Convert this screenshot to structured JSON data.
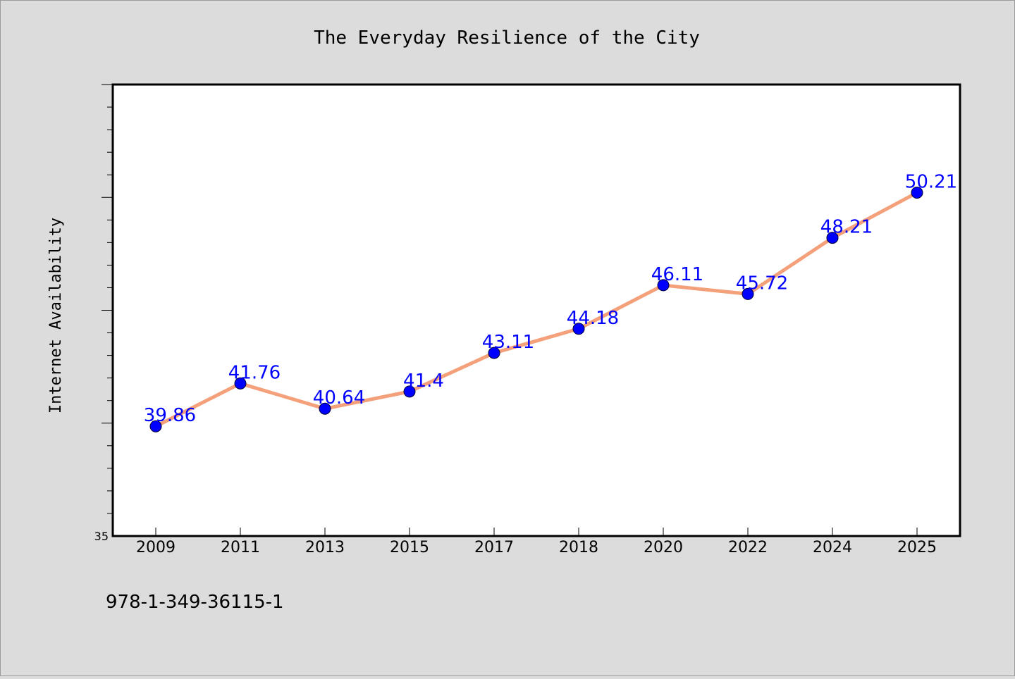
{
  "chart_data": {
    "type": "line",
    "title": "The Everyday Resilience of the City",
    "xlabel": "",
    "ylabel": "Internet Availability",
    "categories": [
      "2009",
      "2011",
      "2013",
      "2015",
      "2017",
      "2018",
      "2020",
      "2022",
      "2024",
      "2025"
    ],
    "series": [
      {
        "values": [
          39.86,
          41.76,
          40.64,
          41.4,
          43.11,
          44.18,
          46.11,
          45.72,
          48.21,
          50.21
        ],
        "data_labels": [
          "39.86",
          "41.76",
          "40.64",
          "41.4",
          "43.11",
          "44.18",
          "46.11",
          "45.72",
          "48.21",
          "50.21"
        ]
      }
    ],
    "ylim": [
      35,
      55
    ],
    "y_tick_labels": [
      "35"
    ],
    "grid": false,
    "legend": "none",
    "colors": {
      "line": "#f4a07a",
      "marker": "#0000ff",
      "data_label": "#0000ff",
      "background": "#dcdcdc",
      "plot_area": "#ffffff"
    }
  },
  "footer_text": "978-1-349-36115-1"
}
